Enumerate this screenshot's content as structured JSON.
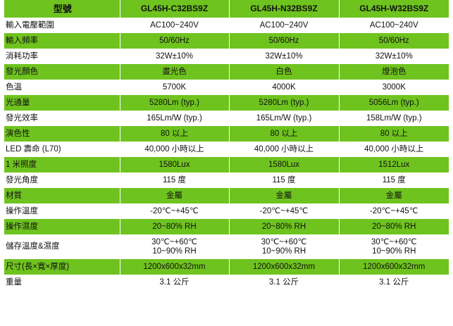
{
  "colors": {
    "green_row": "#6fc31e",
    "white_row": "#ffffff",
    "text": "#111111"
  },
  "header": {
    "label": "型號",
    "models": [
      "GL45H-C32BS9Z",
      "GL45H-N32BS9Z",
      "GL45H-W32BS9Z"
    ]
  },
  "rows": [
    {
      "label": "輸入電壓範圍",
      "values": [
        "AC100~240V",
        "AC100~240V",
        "AC100~240V"
      ]
    },
    {
      "label": "輸入頻率",
      "values": [
        "50/60Hz",
        "50/60Hz",
        "50/60Hz"
      ]
    },
    {
      "label": "消耗功率",
      "values": [
        "32W±10%",
        "32W±10%",
        "32W±10%"
      ]
    },
    {
      "label": "發光顏色",
      "values": [
        "晝光色",
        "白色",
        "燈泡色"
      ]
    },
    {
      "label": "色溫",
      "values": [
        "5700K",
        "4000K",
        "3000K"
      ]
    },
    {
      "label": "光通量",
      "values": [
        "5280Lm (typ.)",
        "5280Lm (typ.)",
        "5056Lm (typ.)"
      ]
    },
    {
      "label": "發光效率",
      "values": [
        "165Lm/W (typ.)",
        "165Lm/W (typ.)",
        "158Lm/W (typ.)"
      ]
    },
    {
      "label": "演色性",
      "values": [
        "80 以上",
        "80 以上",
        "80 以上"
      ]
    },
    {
      "label": "LED 壽命 (L70)",
      "values": [
        "40,000 小時以上",
        "40,000 小時以上",
        "40,000 小時以上"
      ]
    },
    {
      "label": "1 米照度",
      "values": [
        "1580Lux",
        "1580Lux",
        "1512Lux"
      ]
    },
    {
      "label": "發光角度",
      "values": [
        "115 度",
        "115 度",
        "115 度"
      ]
    },
    {
      "label": "材質",
      "values": [
        "金屬",
        "金屬",
        "金屬"
      ]
    },
    {
      "label": "操作溫度",
      "values": [
        "-20℃~+45℃",
        "-20℃~+45℃",
        "-20℃~+45℃"
      ]
    },
    {
      "label": "操作濕度",
      "values": [
        "20~80% RH",
        "20~80% RH",
        "20~80% RH"
      ]
    },
    {
      "label": "儲存溫度&濕度",
      "values": [
        [
          "30℃~+60℃",
          "10~90% RH"
        ],
        [
          "30℃~+60℃",
          "10~90% RH"
        ],
        [
          "30℃~+60℃",
          "10~90% RH"
        ]
      ]
    },
    {
      "label": "尺寸(長×寬×厚度)",
      "values": [
        "1200x600x32mm",
        "1200x600x32mm",
        "1200x600x32mm"
      ]
    },
    {
      "label": "重量",
      "values": [
        "3.1 公斤",
        "3.1 公斤",
        "3.1 公斤"
      ]
    }
  ]
}
